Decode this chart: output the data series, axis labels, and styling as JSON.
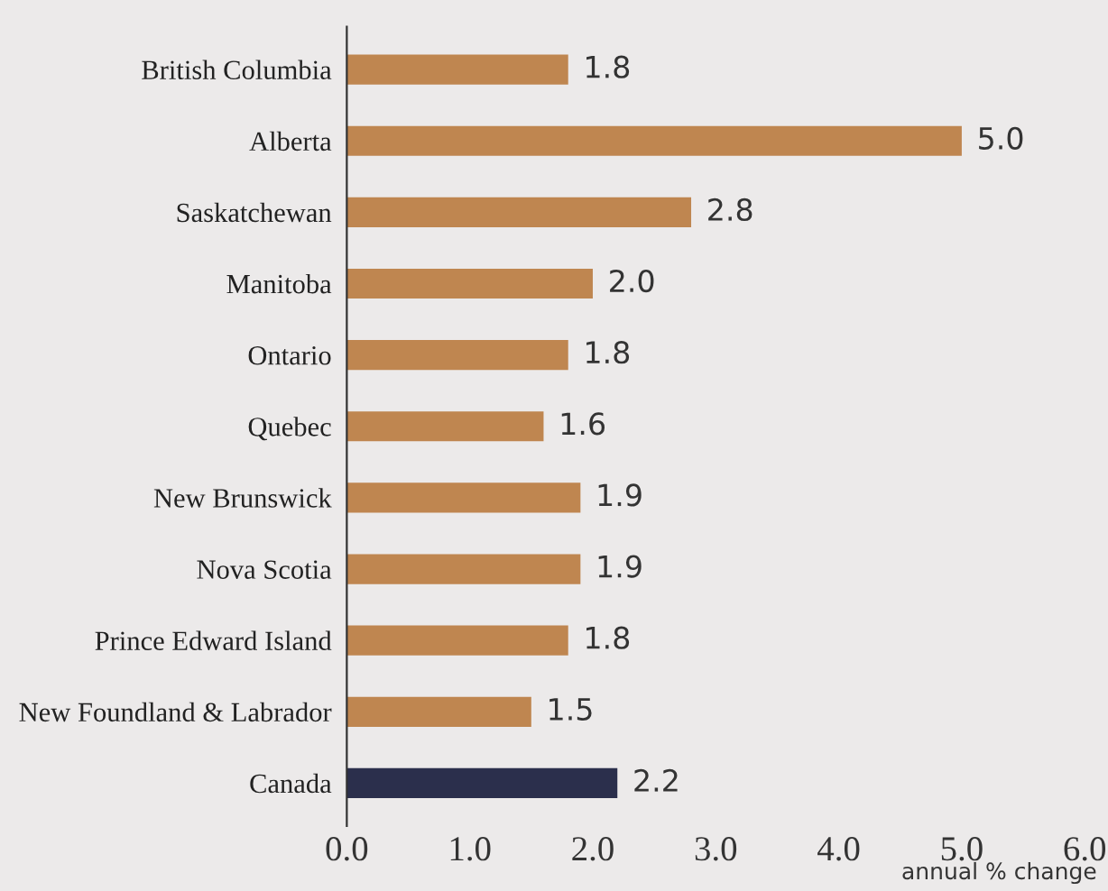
{
  "chart_data": {
    "type": "bar",
    "orientation": "horizontal",
    "xlabel": "annual % change",
    "categories": [
      "British Columbia",
      "Alberta",
      "Saskatchewan",
      "Manitoba",
      "Ontario",
      "Quebec",
      "New Brunswick",
      "Nova Scotia",
      "Prince Edward Island",
      "New Foundland & Labrador",
      "Canada"
    ],
    "values": [
      1.8,
      5.0,
      2.8,
      2.0,
      1.8,
      1.6,
      1.9,
      1.9,
      1.8,
      1.5,
      2.2
    ],
    "colors": [
      "#bf8650",
      "#bf8650",
      "#bf8650",
      "#bf8650",
      "#bf8650",
      "#bf8650",
      "#bf8650",
      "#bf8650",
      "#bf8650",
      "#bf8650",
      "#2b2f4c"
    ],
    "value_labels": [
      "1.8",
      "5.0",
      "2.8",
      "2.0",
      "1.8",
      "1.6",
      "1.9",
      "1.9",
      "1.8",
      "1.5",
      "2.2"
    ],
    "xlim": [
      0,
      6
    ],
    "xticks": [
      {
        "value": 0,
        "label": "0.0"
      },
      {
        "value": 1,
        "label": "1.0"
      },
      {
        "value": 2,
        "label": "2.0"
      },
      {
        "value": 3,
        "label": "3.0"
      },
      {
        "value": 4,
        "label": "4.0"
      },
      {
        "value": 5,
        "label": "5.0"
      },
      {
        "value": 6,
        "label": "6.0"
      }
    ],
    "grid": false,
    "legend": false
  }
}
